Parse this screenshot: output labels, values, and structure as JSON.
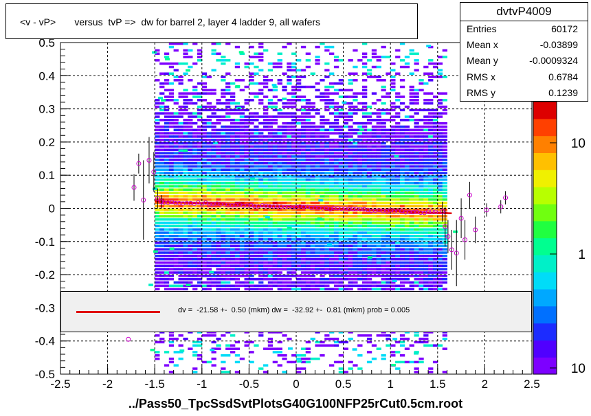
{
  "title": "<v - vP>       versus  tvP =>  dw for barrel 2, layer 4 ladder 9, all wafers",
  "x_axis_title": "../Pass50_TpcSsdSvtPlotsG40G100NFP25rCut0.5cm.root",
  "stats": {
    "name": "dvtvP4009",
    "rows": [
      {
        "label": "Entries",
        "value": "60172"
      },
      {
        "label": "Mean x",
        "value": "-0.03899"
      },
      {
        "label": "Mean y",
        "value": "-0.0009324"
      },
      {
        "label": "RMS x",
        "value": "0.6784"
      },
      {
        "label": "RMS y",
        "value": "0.1239"
      }
    ]
  },
  "fit_legend": "dv =  -21.58 +-  0.50 (mkm) dw =  -32.92 +-  0.81 (mkm) prob = 0.005",
  "colors": {
    "fit_line": "#e00000",
    "profile_marker": "#cc00cc",
    "frame": "#000000"
  },
  "chart_data": {
    "type": "heatmap",
    "xlim": [
      -2.5,
      2.5
    ],
    "ylim": [
      -0.5,
      0.5
    ],
    "x_ticks": [
      "-2.5",
      "-2",
      "-1.5",
      "-1",
      "-0.5",
      "0",
      "0.5",
      "1",
      "1.5",
      "2",
      "2.5"
    ],
    "y_ticks": [
      "-0.5",
      "-0.4",
      "-0.3",
      "-0.2",
      "-0.1",
      "0",
      "0.1",
      "0.2",
      "0.3",
      "0.4",
      "0.5"
    ],
    "z_ticks": [
      "10",
      "1",
      "10"
    ],
    "z_scale": "log",
    "grid": true,
    "palette": [
      "#7d00ff",
      "#5000ff",
      "#1c2cff",
      "#0070ff",
      "#00a8ff",
      "#00dcf8",
      "#00f0c8",
      "#00ff90",
      "#20ff40",
      "#70ff10",
      "#b8ff00",
      "#f0f000",
      "#ffc000",
      "#ff8000",
      "#ff4000",
      "#dd0000"
    ],
    "fit": {
      "slope": -0.0113,
      "intercept": 0.0037,
      "x_range": [
        -1.5,
        1.65
      ]
    },
    "profile_points": [
      {
        "x": -1.72,
        "y": 0.063,
        "err": 0.04
      },
      {
        "x": -1.67,
        "y": 0.135,
        "err": 0.03
      },
      {
        "x": -1.62,
        "y": 0.025,
        "err": 0.12
      },
      {
        "x": -1.56,
        "y": 0.145,
        "err": 0.07
      },
      {
        "x": -1.51,
        "y": 0.11,
        "err": 0.06
      },
      {
        "x": -1.47,
        "y": 0.03,
        "err": 0.03
      },
      {
        "x": -1.43,
        "y": 0.02,
        "err": 0.02
      },
      {
        "x": 1.55,
        "y": -0.01,
        "err": 0.03
      },
      {
        "x": 1.58,
        "y": -0.055,
        "err": 0.06
      },
      {
        "x": 1.61,
        "y": -0.085,
        "err": 0.05
      },
      {
        "x": 1.65,
        "y": -0.125,
        "err": 0.06
      },
      {
        "x": 1.7,
        "y": -0.135,
        "err": 0.1
      },
      {
        "x": 1.75,
        "y": -0.03,
        "err": 0.06
      },
      {
        "x": 1.79,
        "y": -0.095,
        "err": 0.06
      },
      {
        "x": 1.84,
        "y": 0.04,
        "err": 0.04
      },
      {
        "x": 1.9,
        "y": -0.065,
        "err": 0.04
      },
      {
        "x": 2.02,
        "y": -0.005,
        "err": 0.02
      },
      {
        "x": 2.17,
        "y": 0.005,
        "err": 0.02
      },
      {
        "x": 2.22,
        "y": 0.032,
        "err": 0.02
      },
      {
        "x": -1.78,
        "y": -0.395,
        "err": 0.0
      }
    ]
  }
}
